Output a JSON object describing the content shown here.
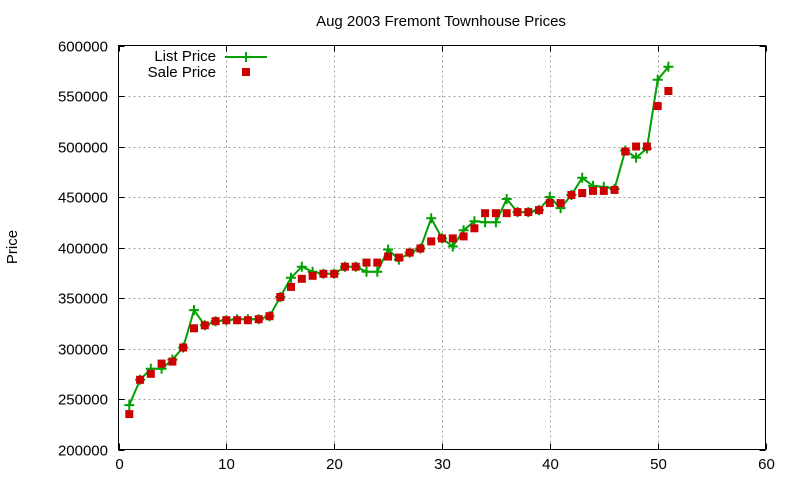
{
  "chart_data": {
    "type": "line",
    "title": "Aug 2003 Fremont Townhouse Prices",
    "xlabel": "",
    "ylabel": "Price",
    "xlim": [
      0,
      60
    ],
    "ylim": [
      200000,
      600000
    ],
    "xticks": [
      0,
      10,
      20,
      30,
      40,
      50,
      60
    ],
    "yticks": [
      200000,
      250000,
      300000,
      350000,
      400000,
      450000,
      500000,
      550000,
      600000
    ],
    "grid": true,
    "legend_position": "top-left",
    "x": [
      1,
      2,
      3,
      4,
      5,
      6,
      7,
      8,
      9,
      10,
      11,
      12,
      13,
      14,
      15,
      16,
      17,
      18,
      19,
      20,
      21,
      22,
      23,
      24,
      25,
      26,
      27,
      28,
      29,
      30,
      31,
      32,
      33,
      34,
      35,
      36,
      37,
      38,
      39,
      40,
      41,
      42,
      43,
      44,
      45,
      46,
      47,
      48,
      49,
      50,
      51
    ],
    "series": [
      {
        "name": "List Price",
        "style": "linespoints",
        "marker": "plus",
        "color": "#00a000",
        "values": [
          244000,
          269000,
          280000,
          280000,
          289000,
          301000,
          338000,
          323000,
          327000,
          328000,
          329000,
          329000,
          329000,
          332000,
          351000,
          370000,
          381000,
          376000,
          374000,
          374000,
          381000,
          381000,
          376000,
          376000,
          398000,
          388000,
          395000,
          399000,
          429000,
          409000,
          401000,
          417000,
          426000,
          425000,
          425000,
          448000,
          435000,
          435000,
          437000,
          450000,
          439000,
          452000,
          469000,
          461000,
          460000,
          458000,
          496000,
          489000,
          498000,
          566000,
          579000
        ]
      },
      {
        "name": "Sale Price",
        "style": "points",
        "marker": "square",
        "color": "#cc0000",
        "values": [
          235000,
          269000,
          275000,
          285000,
          287000,
          301000,
          320000,
          323000,
          327000,
          328000,
          328000,
          328000,
          329000,
          332000,
          351000,
          361000,
          369000,
          372000,
          374000,
          374000,
          381000,
          381000,
          385000,
          385000,
          391000,
          390000,
          395000,
          399000,
          406000,
          409000,
          409000,
          411000,
          419000,
          434000,
          434000,
          434000,
          435000,
          435000,
          437000,
          444000,
          444000,
          452000,
          454000,
          456000,
          456000,
          457000,
          495000,
          500000,
          500000,
          540000,
          555000
        ]
      }
    ]
  }
}
